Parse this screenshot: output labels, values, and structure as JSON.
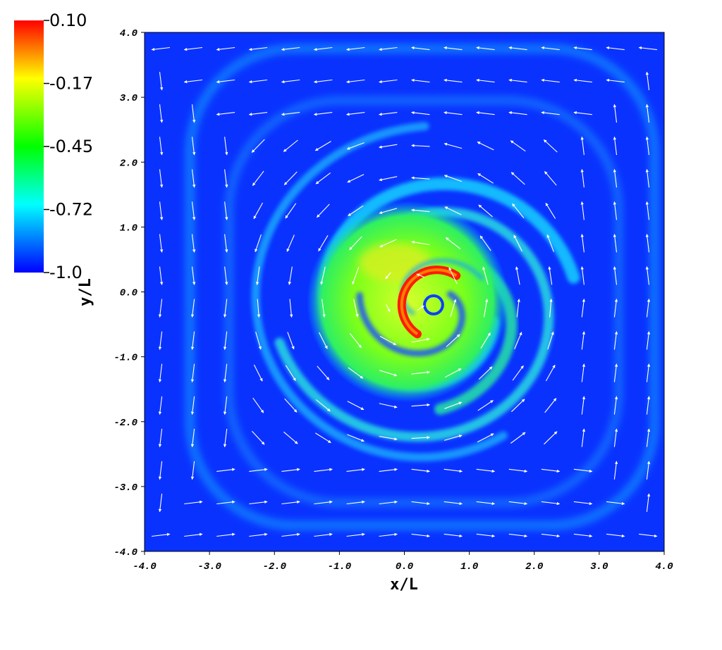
{
  "chart_data": {
    "type": "heatmap",
    "overlay": "vector field (white arrows)",
    "xlabel": "x/L",
    "ylabel": "y/L",
    "xlim": [
      -4.0,
      4.0
    ],
    "ylim": [
      -4.0,
      4.0
    ],
    "x_ticks": [
      "-4.0",
      "-3.0",
      "-2.0",
      "-1.0",
      "0.0",
      "1.0",
      "2.0",
      "3.0",
      "4.0"
    ],
    "y_ticks": [
      "-4.0",
      "-3.0",
      "-2.0",
      "-1.0",
      "0.0",
      "1.0",
      "2.0",
      "3.0",
      "4.0"
    ],
    "colorbar": {
      "ticks": [
        "0.10",
        "-0.17",
        "-0.45",
        "-0.72",
        "-1.0"
      ],
      "range": [
        -1.0,
        0.1
      ],
      "colormap": [
        "#0000ff",
        "#00ffff",
        "#00ff00",
        "#ffff00",
        "#ff0000"
      ]
    },
    "background_color": "#0a32ff",
    "vortex_center": [
      0.4,
      -0.2
    ],
    "rotation": "counter-clockwise",
    "features": [
      {
        "kind": "core",
        "center": [
          0.4,
          -0.2
        ],
        "value": -0.3
      },
      {
        "kind": "hot_crescent",
        "center": [
          0.3,
          -0.1
        ],
        "value": 0.1
      },
      {
        "kind": "spiral_arm",
        "value": -0.45
      },
      {
        "kind": "outer_ring",
        "value": -0.72
      }
    ],
    "grid": false
  }
}
